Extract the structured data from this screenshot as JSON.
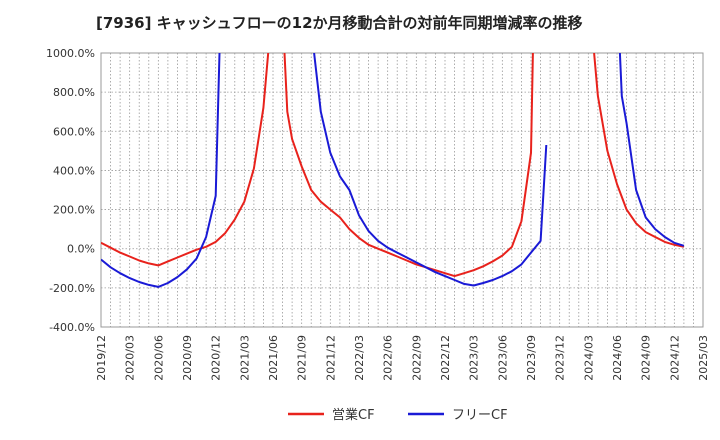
{
  "chart_data": {
    "type": "line",
    "title": "[7936]  キャッシュフローの12か月移動合計の対前年同期増減率の推移",
    "ylim": [
      -400,
      1000
    ],
    "y_ticks": [
      "1000.0%",
      "800.0%",
      "600.0%",
      "400.0%",
      "200.0%",
      "0.0%",
      "-200.0%",
      "-400.0%"
    ],
    "x_ticks": [
      "2019/12",
      "2020/03",
      "2020/06",
      "2020/09",
      "2020/12",
      "2021/03",
      "2021/06",
      "2021/09",
      "2021/12",
      "2022/03",
      "2022/06",
      "2022/09",
      "2022/12",
      "2023/03",
      "2023/06",
      "2023/09",
      "2023/12",
      "2024/03",
      "2024/06",
      "2024/09",
      "2024/12",
      "2025/03"
    ],
    "grid": true,
    "legend_position": "bottom",
    "series": [
      {
        "name": "営業CF",
        "color": "#e8221c",
        "values": [
          [
            0,
            30
          ],
          [
            1,
            5
          ],
          [
            2,
            -20
          ],
          [
            3,
            -40
          ],
          [
            4,
            -60
          ],
          [
            5,
            -75
          ],
          [
            6,
            -85
          ],
          [
            7,
            -65
          ],
          [
            8,
            -45
          ],
          [
            9,
            -25
          ],
          [
            10,
            -5
          ],
          [
            11,
            10
          ],
          [
            12,
            35
          ],
          [
            13,
            80
          ],
          [
            14,
            150
          ],
          [
            15,
            240
          ],
          [
            16,
            410
          ],
          [
            17,
            720
          ],
          [
            17.5,
            1000
          ],
          [
            null,
            null
          ],
          [
            19.2,
            1000
          ],
          [
            19.5,
            700
          ],
          [
            20,
            560
          ],
          [
            21,
            420
          ],
          [
            22,
            300
          ],
          [
            23,
            240
          ],
          [
            24,
            200
          ],
          [
            25,
            160
          ],
          [
            26,
            100
          ],
          [
            27,
            55
          ],
          [
            28,
            20
          ],
          [
            29,
            0
          ],
          [
            30,
            -20
          ],
          [
            31,
            -40
          ],
          [
            32,
            -60
          ],
          [
            33,
            -80
          ],
          [
            34,
            -95
          ],
          [
            35,
            -110
          ],
          [
            36,
            -125
          ],
          [
            37,
            -140
          ],
          [
            38,
            -125
          ],
          [
            39,
            -110
          ],
          [
            40,
            -90
          ],
          [
            41,
            -65
          ],
          [
            42,
            -35
          ],
          [
            43,
            10
          ],
          [
            44,
            140
          ],
          [
            45,
            490
          ],
          [
            45.2,
            1000
          ],
          [
            null,
            null
          ],
          [
            51.6,
            1000
          ],
          [
            52,
            780
          ],
          [
            53,
            500
          ],
          [
            54,
            330
          ],
          [
            55,
            200
          ],
          [
            56,
            130
          ],
          [
            57,
            85
          ],
          [
            58,
            60
          ],
          [
            59,
            35
          ],
          [
            60,
            20
          ],
          [
            61,
            10
          ]
        ]
      },
      {
        "name": "フリーCF",
        "color": "#1a1ad6",
        "values": [
          [
            0,
            -55
          ],
          [
            1,
            -95
          ],
          [
            2,
            -125
          ],
          [
            3,
            -150
          ],
          [
            4,
            -170
          ],
          [
            5,
            -185
          ],
          [
            6,
            -195
          ],
          [
            7,
            -175
          ],
          [
            8,
            -145
          ],
          [
            9,
            -105
          ],
          [
            10,
            -50
          ],
          [
            11,
            60
          ],
          [
            12,
            270
          ],
          [
            12.4,
            1000
          ],
          [
            null,
            null
          ],
          [
            22.3,
            1000
          ],
          [
            23,
            700
          ],
          [
            24,
            490
          ],
          [
            25,
            370
          ],
          [
            26,
            300
          ],
          [
            27,
            170
          ],
          [
            28,
            90
          ],
          [
            29,
            40
          ],
          [
            30,
            5
          ],
          [
            31,
            -20
          ],
          [
            32,
            -45
          ],
          [
            33,
            -70
          ],
          [
            34,
            -95
          ],
          [
            35,
            -120
          ],
          [
            36,
            -140
          ],
          [
            37,
            -160
          ],
          [
            38,
            -180
          ],
          [
            39,
            -188
          ],
          [
            40,
            -175
          ],
          [
            41,
            -160
          ],
          [
            42,
            -140
          ],
          [
            43,
            -115
          ],
          [
            44,
            -80
          ],
          [
            45,
            -20
          ],
          [
            46,
            40
          ],
          [
            46.6,
            530
          ],
          [
            null,
            null
          ],
          [
            54.3,
            1000
          ],
          [
            54.5,
            780
          ],
          [
            55,
            640
          ],
          [
            56,
            300
          ],
          [
            57,
            160
          ],
          [
            58,
            100
          ],
          [
            59,
            60
          ],
          [
            60,
            30
          ],
          [
            61,
            15
          ]
        ]
      }
    ]
  }
}
